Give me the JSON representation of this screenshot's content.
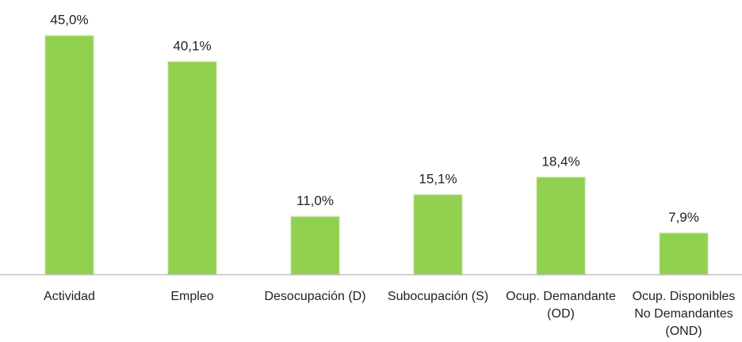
{
  "chart_data": {
    "type": "bar",
    "categories": [
      "Actividad",
      "Empleo",
      "Desocupación (D)",
      "Subocupación (S)",
      "Ocup. Demandante (OD)",
      "Ocup. Disponibles No Demandantes (OND)"
    ],
    "values": [
      45.0,
      40.1,
      11.0,
      15.1,
      18.4,
      7.9
    ],
    "value_labels": [
      "45,0%",
      "40,1%",
      "11,0%",
      "15,1%",
      "18,4%",
      "7,9%"
    ],
    "color": "#92d050",
    "ylim": [
      0,
      50
    ]
  }
}
